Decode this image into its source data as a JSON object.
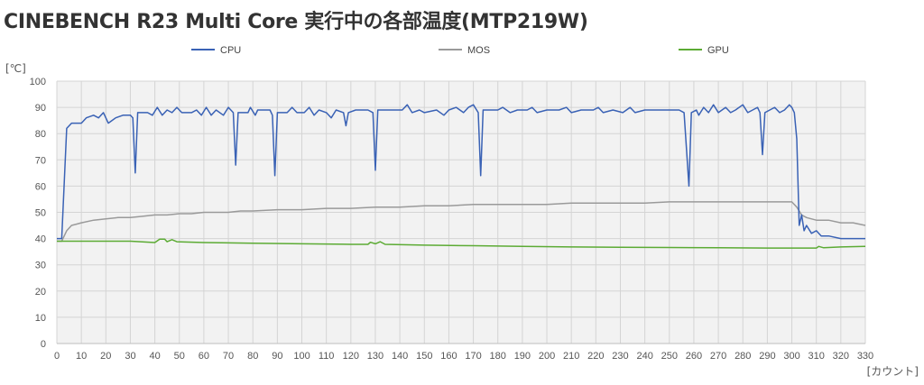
{
  "chart_data": {
    "type": "line",
    "title": "CINEBENCH R23 Multi Core 実行中の各部温度(MTP219W)",
    "ylabel": "[℃]",
    "xlabel": "[カウント]",
    "xlim": [
      0,
      330
    ],
    "ylim": [
      0,
      100
    ],
    "x_ticks": [
      0,
      10,
      20,
      30,
      40,
      50,
      60,
      70,
      80,
      90,
      100,
      110,
      120,
      130,
      140,
      150,
      160,
      170,
      180,
      190,
      200,
      210,
      220,
      230,
      240,
      250,
      260,
      270,
      280,
      290,
      300,
      310,
      320,
      330
    ],
    "y_ticks": [
      0,
      10,
      20,
      30,
      40,
      50,
      60,
      70,
      80,
      90,
      100
    ],
    "grid": true,
    "legend_position": "top",
    "series": [
      {
        "name": "CPU",
        "color": "#3a62b5",
        "points": [
          [
            0,
            40
          ],
          [
            2,
            40
          ],
          [
            4,
            82
          ],
          [
            6,
            84
          ],
          [
            10,
            84
          ],
          [
            12,
            86
          ],
          [
            15,
            87
          ],
          [
            17,
            86
          ],
          [
            19,
            88
          ],
          [
            21,
            84
          ],
          [
            24,
            86
          ],
          [
            27,
            87
          ],
          [
            30,
            87
          ],
          [
            31,
            86
          ],
          [
            32,
            65
          ],
          [
            33,
            88
          ],
          [
            37,
            88
          ],
          [
            39,
            87
          ],
          [
            41,
            90
          ],
          [
            43,
            87
          ],
          [
            45,
            89
          ],
          [
            47,
            88
          ],
          [
            49,
            90
          ],
          [
            51,
            88
          ],
          [
            55,
            88
          ],
          [
            57,
            89
          ],
          [
            59,
            87
          ],
          [
            61,
            90
          ],
          [
            63,
            87
          ],
          [
            65,
            89
          ],
          [
            68,
            87
          ],
          [
            70,
            90
          ],
          [
            72,
            88
          ],
          [
            73,
            68
          ],
          [
            74,
            88
          ],
          [
            78,
            88
          ],
          [
            79,
            90
          ],
          [
            81,
            87
          ],
          [
            82,
            89
          ],
          [
            87,
            89
          ],
          [
            88,
            87
          ],
          [
            89,
            64
          ],
          [
            90,
            88
          ],
          [
            94,
            88
          ],
          [
            96,
            90
          ],
          [
            98,
            88
          ],
          [
            101,
            88
          ],
          [
            103,
            90
          ],
          [
            105,
            87
          ],
          [
            107,
            89
          ],
          [
            110,
            88
          ],
          [
            112,
            86
          ],
          [
            114,
            89
          ],
          [
            117,
            88
          ],
          [
            118,
            83
          ],
          [
            119,
            88
          ],
          [
            122,
            89
          ],
          [
            127,
            89
          ],
          [
            129,
            88
          ],
          [
            130,
            66
          ],
          [
            131,
            89
          ],
          [
            136,
            89
          ],
          [
            138,
            89
          ],
          [
            141,
            89
          ],
          [
            143,
            91
          ],
          [
            145,
            88
          ],
          [
            148,
            89
          ],
          [
            150,
            88
          ],
          [
            155,
            89
          ],
          [
            158,
            87
          ],
          [
            160,
            89
          ],
          [
            163,
            90
          ],
          [
            166,
            88
          ],
          [
            168,
            90
          ],
          [
            170,
            91
          ],
          [
            172,
            88
          ],
          [
            173,
            64
          ],
          [
            174,
            89
          ],
          [
            180,
            89
          ],
          [
            182,
            90
          ],
          [
            185,
            88
          ],
          [
            188,
            89
          ],
          [
            192,
            89
          ],
          [
            194,
            90
          ],
          [
            196,
            88
          ],
          [
            200,
            89
          ],
          [
            205,
            89
          ],
          [
            208,
            90
          ],
          [
            210,
            88
          ],
          [
            214,
            89
          ],
          [
            219,
            89
          ],
          [
            221,
            90
          ],
          [
            223,
            88
          ],
          [
            227,
            89
          ],
          [
            231,
            88
          ],
          [
            234,
            90
          ],
          [
            236,
            88
          ],
          [
            240,
            89
          ],
          [
            245,
            89
          ],
          [
            250,
            89
          ],
          [
            254,
            89
          ],
          [
            256,
            88
          ],
          [
            258,
            60
          ],
          [
            259,
            88
          ],
          [
            261,
            89
          ],
          [
            262,
            87
          ],
          [
            264,
            90
          ],
          [
            266,
            88
          ],
          [
            268,
            91
          ],
          [
            270,
            88
          ],
          [
            273,
            90
          ],
          [
            275,
            88
          ],
          [
            277,
            89
          ],
          [
            280,
            91
          ],
          [
            282,
            88
          ],
          [
            284,
            89
          ],
          [
            286,
            90
          ],
          [
            287,
            88
          ],
          [
            288,
            72
          ],
          [
            289,
            88
          ],
          [
            291,
            89
          ],
          [
            293,
            90
          ],
          [
            295,
            88
          ],
          [
            297,
            89
          ],
          [
            299,
            91
          ],
          [
            300,
            90
          ],
          [
            301,
            88
          ],
          [
            302,
            78
          ],
          [
            303,
            45
          ],
          [
            304,
            49
          ],
          [
            305,
            43
          ],
          [
            306,
            45
          ],
          [
            308,
            42
          ],
          [
            310,
            43
          ],
          [
            312,
            41
          ],
          [
            315,
            41
          ],
          [
            320,
            40
          ],
          [
            325,
            40
          ],
          [
            330,
            40
          ]
        ]
      },
      {
        "name": "MOS",
        "color": "#9a9a9a",
        "points": [
          [
            0,
            39
          ],
          [
            2,
            39
          ],
          [
            4,
            43
          ],
          [
            6,
            45
          ],
          [
            8,
            45.5
          ],
          [
            10,
            46
          ],
          [
            15,
            47
          ],
          [
            20,
            47.5
          ],
          [
            25,
            48
          ],
          [
            30,
            48
          ],
          [
            35,
            48.5
          ],
          [
            40,
            49
          ],
          [
            45,
            49
          ],
          [
            50,
            49.5
          ],
          [
            55,
            49.5
          ],
          [
            60,
            50
          ],
          [
            65,
            50
          ],
          [
            70,
            50
          ],
          [
            75,
            50.5
          ],
          [
            80,
            50.5
          ],
          [
            90,
            51
          ],
          [
            100,
            51
          ],
          [
            110,
            51.5
          ],
          [
            120,
            51.5
          ],
          [
            130,
            52
          ],
          [
            140,
            52
          ],
          [
            150,
            52.5
          ],
          [
            160,
            52.5
          ],
          [
            170,
            53
          ],
          [
            180,
            53
          ],
          [
            190,
            53
          ],
          [
            200,
            53
          ],
          [
            210,
            53.5
          ],
          [
            220,
            53.5
          ],
          [
            230,
            53.5
          ],
          [
            240,
            53.5
          ],
          [
            250,
            54
          ],
          [
            260,
            54
          ],
          [
            270,
            54
          ],
          [
            280,
            54
          ],
          [
            290,
            54
          ],
          [
            298,
            54
          ],
          [
            300,
            54
          ],
          [
            302,
            52
          ],
          [
            304,
            49
          ],
          [
            306,
            48
          ],
          [
            310,
            47
          ],
          [
            315,
            47
          ],
          [
            320,
            46
          ],
          [
            325,
            46
          ],
          [
            330,
            45
          ]
        ]
      },
      {
        "name": "GPU",
        "color": "#5cab34",
        "points": [
          [
            0,
            39
          ],
          [
            10,
            39
          ],
          [
            20,
            39
          ],
          [
            30,
            39
          ],
          [
            40,
            38.5
          ],
          [
            42,
            39.8
          ],
          [
            44,
            39.8
          ],
          [
            45,
            38.8
          ],
          [
            47,
            39.6
          ],
          [
            49,
            38.8
          ],
          [
            60,
            38.5
          ],
          [
            80,
            38.2
          ],
          [
            100,
            38
          ],
          [
            120,
            37.8
          ],
          [
            127,
            37.8
          ],
          [
            128,
            38.6
          ],
          [
            130,
            38
          ],
          [
            132,
            38.8
          ],
          [
            134,
            37.8
          ],
          [
            150,
            37.5
          ],
          [
            170,
            37.3
          ],
          [
            190,
            37
          ],
          [
            210,
            36.8
          ],
          [
            230,
            36.7
          ],
          [
            250,
            36.6
          ],
          [
            270,
            36.5
          ],
          [
            290,
            36.4
          ],
          [
            300,
            36.4
          ],
          [
            310,
            36.4
          ],
          [
            311,
            37
          ],
          [
            313,
            36.5
          ],
          [
            320,
            36.8
          ],
          [
            330,
            37
          ]
        ]
      }
    ]
  }
}
